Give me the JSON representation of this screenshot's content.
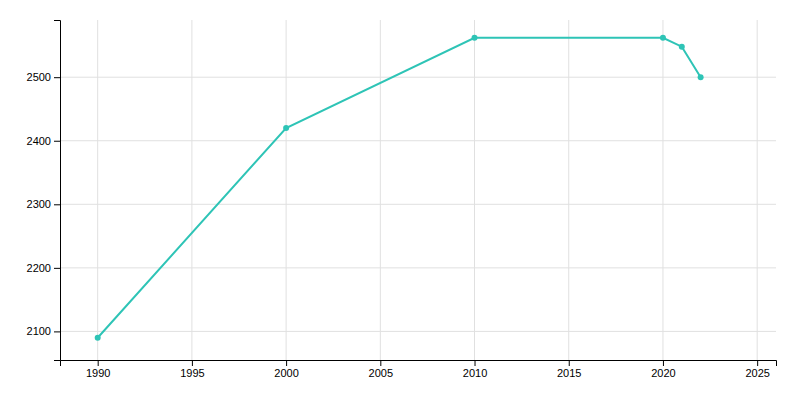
{
  "chart_data": {
    "type": "line",
    "x": [
      1990,
      2000,
      2010,
      2020,
      2021,
      2022
    ],
    "values": [
      2090,
      2420,
      2562,
      2562,
      2548,
      2500
    ],
    "color": "#2ec4b6",
    "marker": "circle",
    "xlim": [
      1988,
      2026
    ],
    "ylim": [
      2055,
      2590
    ],
    "xticks": [
      1990,
      1995,
      2000,
      2005,
      2010,
      2015,
      2020,
      2025
    ],
    "yticks": [
      2100,
      2200,
      2300,
      2400,
      2500
    ],
    "grid": true
  }
}
